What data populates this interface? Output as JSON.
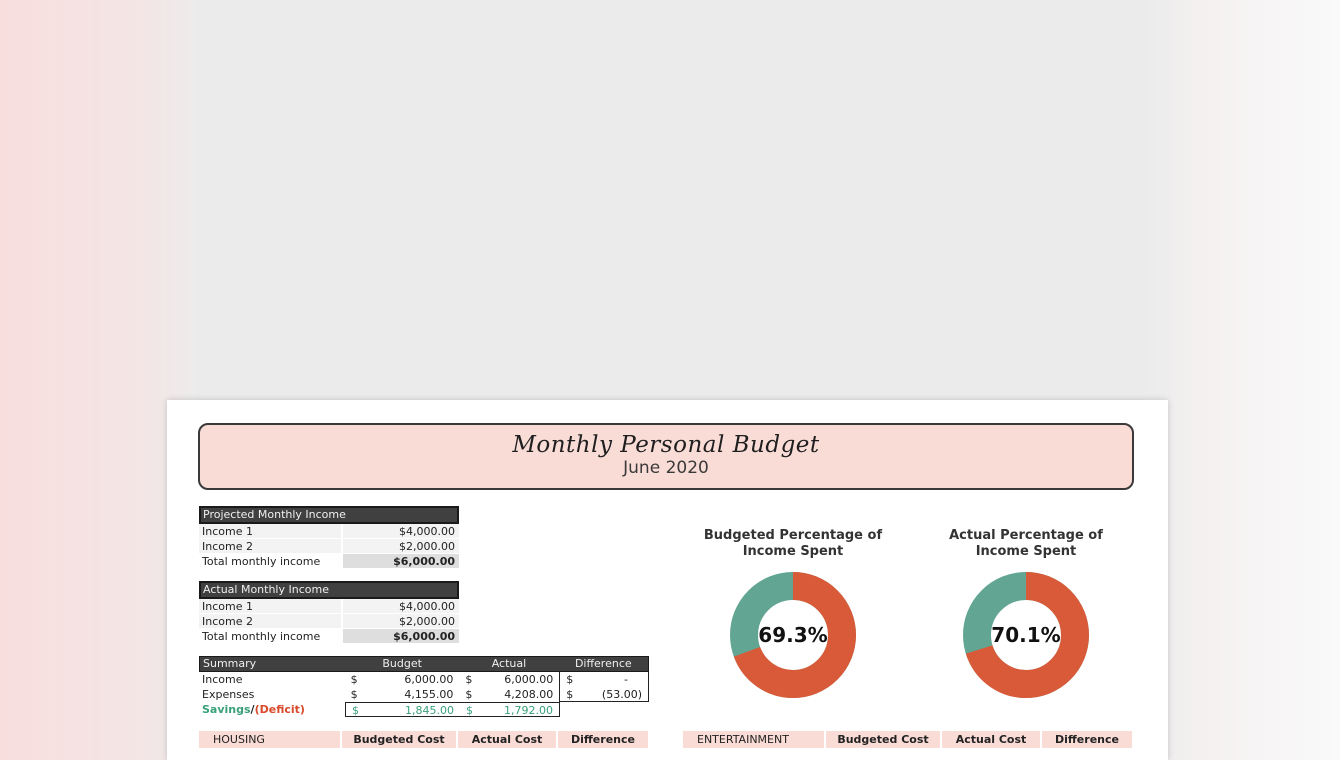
{
  "banner": {
    "title": "Monthly Personal Budget",
    "subtitle": "June 2020"
  },
  "projected": {
    "header": "Projected Monthly Income",
    "rows": [
      {
        "label": "Income 1",
        "value": "$4,000.00"
      },
      {
        "label": "Income 2",
        "value": "$2,000.00"
      },
      {
        "label": "Total monthly income",
        "value": "$6,000.00"
      }
    ]
  },
  "actual": {
    "header": "Actual Monthly Income",
    "rows": [
      {
        "label": "Income 1",
        "value": "$4,000.00"
      },
      {
        "label": "Income 2",
        "value": "$2,000.00"
      },
      {
        "label": "Total monthly income",
        "value": "$6,000.00"
      }
    ]
  },
  "summary": {
    "headers": [
      "Summary",
      "Budget",
      "Actual",
      "Difference"
    ],
    "currency": "$",
    "income": {
      "label": "Income",
      "budget": "6,000.00",
      "actual": "6,000.00",
      "difference": "-"
    },
    "expenses": {
      "label": "Expenses",
      "budget": "4,155.00",
      "actual": "4,208.00",
      "difference": "(53.00)"
    },
    "savings": {
      "label_savings": "Savings",
      "label_sep": "/",
      "label_deficit": "(Deficit)",
      "budget": "1,845.00",
      "actual": "1,792.00"
    }
  },
  "charts": {
    "budgeted": {
      "title_line1": "Budgeted Percentage of",
      "title_line2": "Income Spent",
      "value_label": "69.3%",
      "percent": 69.3
    },
    "actual": {
      "title_line1": "Actual Percentage of",
      "title_line2": "Income Spent",
      "value_label": "70.1%",
      "percent": 70.1
    },
    "colors": {
      "spent": "#d95a38",
      "remaining": "#62a592"
    }
  },
  "housing": {
    "headers": [
      "HOUSING",
      "Budgeted Cost",
      "Actual Cost",
      "Difference"
    ]
  },
  "entertainment": {
    "headers": [
      "ENTERTAINMENT",
      "Budgeted Cost",
      "Actual Cost",
      "Difference"
    ]
  }
}
